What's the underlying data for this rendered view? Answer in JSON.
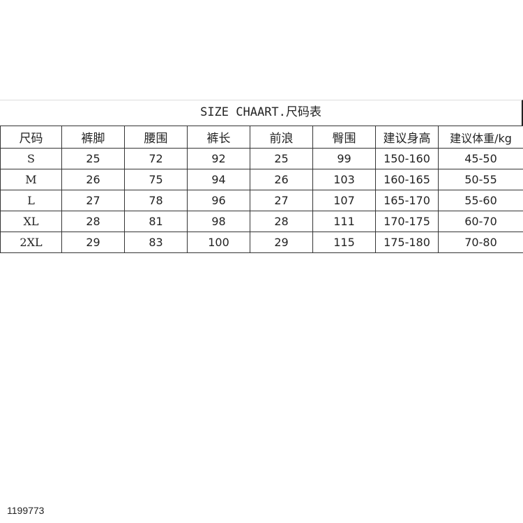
{
  "title": "SIZE CHAART.尺码表",
  "headers": [
    "尺码",
    "裤脚",
    "腰围",
    "裤长",
    "前浪",
    "臀围",
    "建议身高",
    "建议体重/kg"
  ],
  "rows": [
    [
      "S",
      "25",
      "72",
      "92",
      "25",
      "99",
      "150-160",
      "45-50"
    ],
    [
      "M",
      "26",
      "75",
      "94",
      "26",
      "103",
      "160-165",
      "50-55"
    ],
    [
      "L",
      "27",
      "78",
      "96",
      "27",
      "107",
      "165-170",
      "55-60"
    ],
    [
      "XL",
      "28",
      "81",
      "98",
      "28",
      "111",
      "170-175",
      "60-70"
    ],
    [
      "2XL",
      "29",
      "83",
      "100",
      "29",
      "115",
      "175-180",
      "70-80"
    ]
  ],
  "image_id": "1199773"
}
